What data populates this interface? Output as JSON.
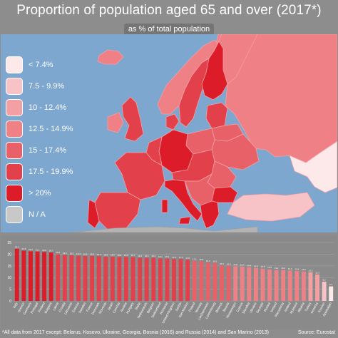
{
  "title": "Proportion of population aged 65 and over (2017*)",
  "subtitle": "as % of total population",
  "legend": [
    {
      "label": "< 7.4%",
      "color": "#fde9ea"
    },
    {
      "label": "7.5 - 9.9%",
      "color": "#f8c3c6"
    },
    {
      "label": "10 - 12.4%",
      "color": "#f3a0a4"
    },
    {
      "label": "12.5 - 14.9%",
      "color": "#ee8086"
    },
    {
      "label": "15 - 17.4%",
      "color": "#e96168"
    },
    {
      "label": "17.5 - 19.9%",
      "color": "#e2404a"
    },
    {
      "label": "> 20%",
      "color": "#dc1c28"
    },
    {
      "label": "N / A",
      "color": "#c8c8c8"
    }
  ],
  "colors": {
    "sea": "#7da7cf",
    "no_data": "#b4b4b4",
    "background": "#8d8d8d"
  },
  "chart_data": {
    "type": "bar",
    "categories": [
      "Italy",
      "Greece",
      "Germany",
      "Portugal",
      "Finland",
      "Bulgaria",
      "Latvia",
      "Croatia",
      "Lithuania",
      "Estonia",
      "Sweden",
      "France",
      "Denmark",
      "Slovenia",
      "Spain",
      "Czechia",
      "Austria",
      "Hungary",
      "Malta",
      "Netherlands",
      "Belgium",
      "Switzerland",
      "Romania",
      "United Kingdom",
      "Serbia",
      "San Marino",
      "Poland",
      "Norway",
      "Liechtenstein",
      "Luxembourg",
      "Belarus",
      "Bosnia",
      "Montenegro",
      "Cyprus",
      "Slovakia",
      "Ukraine",
      "Georgia",
      "Russia",
      "Iceland",
      "Macedonia",
      "Ireland",
      "Moldova",
      "Albania",
      "Turkey",
      "Armenia",
      "Kosovo",
      "Azerbaijan"
    ],
    "values": [
      22.3,
      21.5,
      21.2,
      21.1,
      20.9,
      20.7,
      19.9,
      19.6,
      19.5,
      19.3,
      19.2,
      19.2,
      19.1,
      18.9,
      18.9,
      18.8,
      18.8,
      18.7,
      18.4,
      18.4,
      18.4,
      18.1,
      18.1,
      17.9,
      17.9,
      17.6,
      17.1,
      16.9,
      16.3,
      16.2,
      15.1,
      15.0,
      14.8,
      14.7,
      14.4,
      14.0,
      13.8,
      13.5,
      13.2,
      13.2,
      13.0,
      12.8,
      12.6,
      12.2,
      11.3,
      8.2,
      6.2
    ],
    "data_labels": [
      "22.3",
      "21.5",
      "21.2",
      "21.1",
      "20.9",
      "20.7",
      "19.9",
      "19.6",
      "19.5",
      "19.3",
      "19.2",
      "19.2",
      "19.1",
      "18.9",
      "18.9",
      "18.8",
      "18.8",
      "18.7",
      "18.4",
      "18.4",
      "18.4",
      "18.1",
      "18.1",
      "17.9",
      "17.9",
      "17.6",
      "17.1",
      "16.9",
      "16.3",
      "16.2",
      "15.1",
      "15.0",
      "14.8",
      "14.7",
      "14.4",
      "14.0",
      "13.8",
      "13.5",
      "13.2",
      "13.2",
      "13.0",
      "12.8",
      "12.6",
      "12.2",
      "11.3",
      "8.2",
      "6.2"
    ],
    "yticks": [
      0,
      5,
      10,
      15,
      20,
      25
    ],
    "ylim": [
      0,
      25
    ],
    "grid": true
  },
  "footnote": "*All data from 2017 except: Belarus, Kosovo, Ukraine, Georgia, Bosnia (2016) and Russia (2014) and San Marino (2013)",
  "source": "Source: Eurostat"
}
